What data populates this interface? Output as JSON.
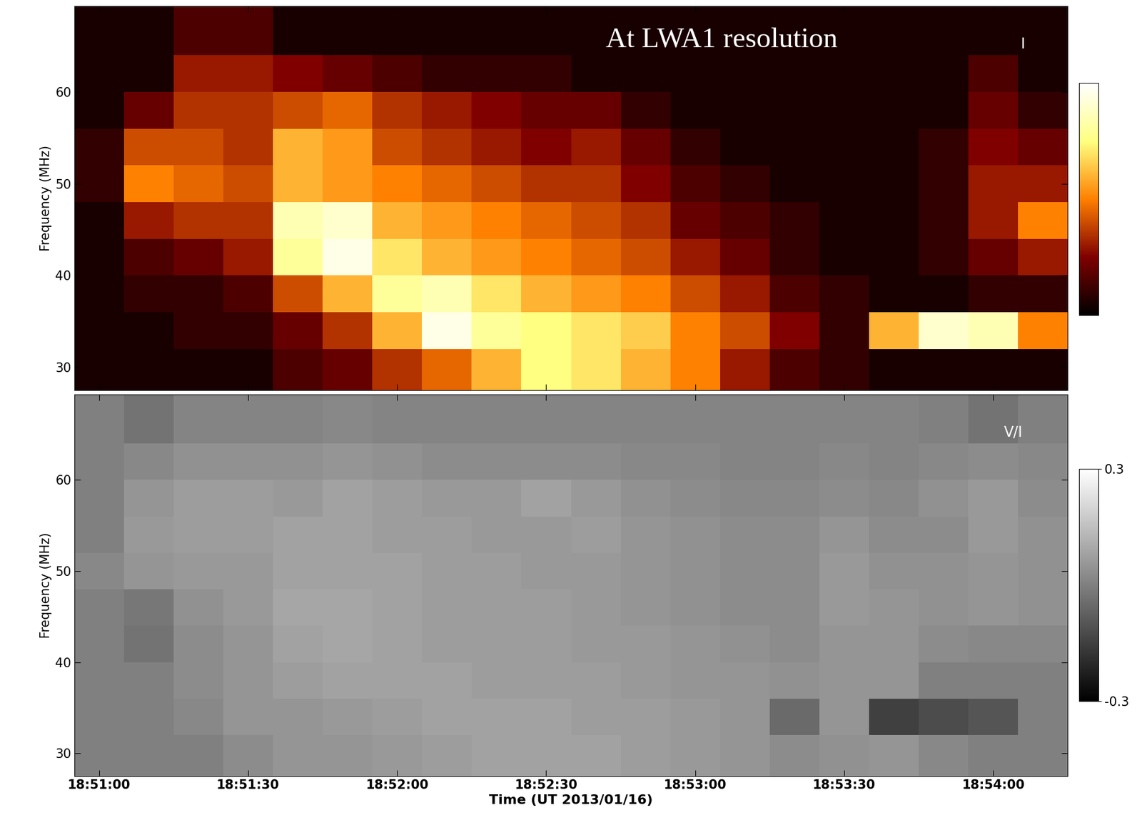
{
  "chart_data": [
    {
      "type": "heatmap",
      "annotations": [
        "At LWA1 resolution",
        "I"
      ],
      "y_label": "Frequency (MHz)",
      "color": "afmhot",
      "tick_labels": "y",
      "xlim": [
        -5,
        195
      ],
      "xticks": [
        {
          "value": 0,
          "label": "18:51:00"
        },
        {
          "value": 30,
          "label": "18:51:30"
        },
        {
          "value": 60,
          "label": "18:52:00"
        },
        {
          "value": 90,
          "label": "18:52:30"
        },
        {
          "value": 120,
          "label": "18:53:00"
        },
        {
          "value": 150,
          "label": "18:53:30"
        },
        {
          "value": 180,
          "label": "18:54:00"
        }
      ],
      "ylim": [
        27.5,
        69.4
      ],
      "yticks": [
        30,
        40,
        50,
        60
      ],
      "x_edges": [
        -5,
        5,
        15,
        25,
        35,
        45,
        55,
        65,
        75,
        85,
        95,
        105,
        115,
        125,
        135,
        145,
        155,
        165,
        175,
        185,
        195
      ],
      "y_edges": [
        27.5,
        32,
        36,
        40,
        44,
        48,
        52,
        56,
        60,
        64,
        69.4
      ],
      "clim": [
        0,
        1
      ],
      "cticks": [],
      "cells": [
        [
          0.05,
          0.05,
          0.05,
          0.05,
          0.15,
          0.2,
          0.35,
          0.45,
          0.6,
          0.75,
          0.7,
          0.6,
          0.5,
          0.3,
          0.15,
          0.1,
          0.05,
          0.05,
          0.05,
          0.05
        ],
        [
          0.05,
          0.05,
          0.1,
          0.1,
          0.2,
          0.35,
          0.6,
          0.95,
          0.8,
          0.75,
          0.7,
          0.65,
          0.5,
          0.4,
          0.25,
          0.1,
          0.6,
          0.9,
          0.85,
          0.5
        ],
        [
          0.05,
          0.1,
          0.1,
          0.15,
          0.4,
          0.6,
          0.8,
          0.85,
          0.7,
          0.6,
          0.55,
          0.5,
          0.4,
          0.3,
          0.15,
          0.1,
          0.05,
          0.05,
          0.1,
          0.1
        ],
        [
          0.05,
          0.15,
          0.2,
          0.3,
          0.8,
          0.95,
          0.7,
          0.6,
          0.55,
          0.5,
          0.45,
          0.4,
          0.3,
          0.2,
          0.1,
          0.05,
          0.05,
          0.1,
          0.2,
          0.3
        ],
        [
          0.05,
          0.3,
          0.35,
          0.35,
          0.85,
          0.9,
          0.6,
          0.55,
          0.5,
          0.45,
          0.4,
          0.35,
          0.2,
          0.15,
          0.1,
          0.05,
          0.05,
          0.1,
          0.3,
          0.5
        ],
        [
          0.1,
          0.5,
          0.45,
          0.4,
          0.6,
          0.55,
          0.5,
          0.45,
          0.4,
          0.35,
          0.35,
          0.25,
          0.15,
          0.1,
          0.05,
          0.05,
          0.05,
          0.1,
          0.3,
          0.3
        ],
        [
          0.1,
          0.4,
          0.4,
          0.35,
          0.6,
          0.55,
          0.4,
          0.35,
          0.3,
          0.25,
          0.3,
          0.2,
          0.1,
          0.05,
          0.05,
          0.05,
          0.05,
          0.1,
          0.25,
          0.2
        ],
        [
          0.05,
          0.2,
          0.35,
          0.35,
          0.4,
          0.45,
          0.35,
          0.3,
          0.25,
          0.2,
          0.2,
          0.1,
          0.05,
          0.05,
          0.05,
          0.05,
          0.05,
          0.05,
          0.2,
          0.1
        ],
        [
          0.05,
          0.05,
          0.3,
          0.3,
          0.25,
          0.2,
          0.15,
          0.1,
          0.1,
          0.1,
          0.05,
          0.05,
          0.05,
          0.05,
          0.05,
          0.05,
          0.05,
          0.05,
          0.15,
          0.05
        ],
        [
          0.05,
          0.05,
          0.15,
          0.15,
          0.05,
          0.05,
          0.05,
          0.05,
          0.05,
          0.05,
          0.05,
          0.05,
          0.05,
          0.05,
          0.05,
          0.05,
          0.05,
          0.05,
          0.05,
          0.05
        ]
      ]
    },
    {
      "type": "heatmap",
      "annotations": [
        "V/I"
      ],
      "y_label": "Frequency (MHz)",
      "x_label": "Time (UT 2013/01/16)",
      "color": "gray",
      "xlim": [
        -5,
        195
      ],
      "xticks": [
        {
          "value": 0,
          "label": "18:51:00"
        },
        {
          "value": 30,
          "label": "18:51:30"
        },
        {
          "value": 60,
          "label": "18:52:00"
        },
        {
          "value": 90,
          "label": "18:52:30"
        },
        {
          "value": 120,
          "label": "18:53:00"
        },
        {
          "value": 150,
          "label": "18:53:30"
        },
        {
          "value": 180,
          "label": "18:54:00"
        }
      ],
      "ylim": [
        27.5,
        69.4
      ],
      "yticks": [
        30,
        40,
        50,
        60
      ],
      "x_edges": [
        -5,
        5,
        15,
        25,
        35,
        45,
        55,
        65,
        75,
        85,
        95,
        105,
        115,
        125,
        135,
        145,
        155,
        165,
        175,
        185,
        195
      ],
      "y_edges": [
        27.5,
        32,
        36,
        40,
        44,
        48,
        52,
        56,
        60,
        64,
        69.4
      ],
      "clim": [
        -0.3,
        0.3
      ],
      "cticks": [
        -0.3,
        0.3
      ],
      "cells": [
        [
          0,
          0,
          0,
          0.03,
          0.05,
          0.05,
          0.06,
          0.07,
          0.08,
          0.08,
          0.08,
          0.07,
          0.06,
          0.05,
          0.03,
          0.04,
          0.05,
          0.02,
          0,
          0
        ],
        [
          0,
          0,
          0.02,
          0.05,
          0.05,
          0.06,
          0.07,
          0.08,
          0.08,
          0.08,
          0.07,
          0.07,
          0.06,
          0.05,
          -0.05,
          0.05,
          -0.15,
          -0.12,
          -0.1,
          0
        ],
        [
          0,
          0,
          0.03,
          0.05,
          0.07,
          0.08,
          0.08,
          0.08,
          0.07,
          0.07,
          0.07,
          0.06,
          0.05,
          0.05,
          0.04,
          0.05,
          0.05,
          0,
          0,
          0
        ],
        [
          0,
          -0.03,
          0.03,
          0.05,
          0.08,
          0.09,
          0.08,
          0.07,
          0.07,
          0.07,
          0.06,
          0.06,
          0.05,
          0.04,
          0.03,
          0.05,
          0.05,
          0.03,
          0.02,
          0.02
        ],
        [
          0,
          -0.02,
          0.04,
          0.06,
          0.09,
          0.09,
          0.08,
          0.07,
          0.07,
          0.07,
          0.06,
          0.05,
          0.04,
          0.03,
          0.03,
          0.06,
          0.05,
          0.04,
          0.05,
          0.04
        ],
        [
          0.02,
          0.05,
          0.06,
          0.06,
          0.08,
          0.08,
          0.08,
          0.07,
          0.07,
          0.06,
          0.06,
          0.05,
          0.04,
          0.03,
          0.03,
          0.06,
          0.04,
          0.04,
          0.05,
          0.04
        ],
        [
          0,
          0.06,
          0.07,
          0.07,
          0.08,
          0.08,
          0.07,
          0.07,
          0.06,
          0.06,
          0.07,
          0.05,
          0.04,
          0.03,
          0.03,
          0.05,
          0.03,
          0.03,
          0.06,
          0.04
        ],
        [
          0,
          0.05,
          0.07,
          0.07,
          0.06,
          0.08,
          0.07,
          0.06,
          0.06,
          0.08,
          0.06,
          0.04,
          0.03,
          0.02,
          0.02,
          0.03,
          0.02,
          0.04,
          0.06,
          0.03
        ],
        [
          0,
          0.02,
          0.04,
          0.04,
          0.04,
          0.05,
          0.04,
          0.03,
          0.03,
          0.03,
          0.03,
          0.02,
          0.02,
          0.01,
          0.01,
          0.02,
          0.01,
          0.02,
          0.03,
          0.02
        ],
        [
          0,
          -0.03,
          0.01,
          0.01,
          0.01,
          0.02,
          0.01,
          0.01,
          0.01,
          0.01,
          0.01,
          0.01,
          0.01,
          0.01,
          0.01,
          0.01,
          0.01,
          0,
          -0.03,
          0
        ]
      ]
    }
  ]
}
